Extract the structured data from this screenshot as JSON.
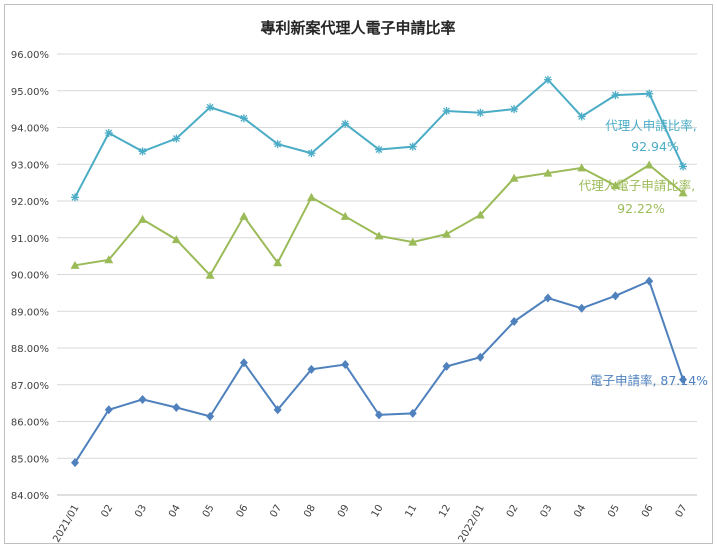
{
  "chart_data": {
    "type": "line",
    "title": "專利新案代理人電子申請比率",
    "xlabel": "",
    "ylabel": "",
    "ylim": [
      84,
      96
    ],
    "y_ticks": [
      "84.00%",
      "85.00%",
      "86.00%",
      "87.00%",
      "88.00%",
      "89.00%",
      "90.00%",
      "91.00%",
      "92.00%",
      "93.00%",
      "94.00%",
      "95.00%",
      "96.00%"
    ],
    "categories": [
      "2021/01",
      "02",
      "03",
      "04",
      "05",
      "06",
      "07",
      "08",
      "09",
      "10",
      "11",
      "12",
      "2022/01",
      "02",
      "03",
      "04",
      "05",
      "06",
      "07"
    ],
    "grid": "horizontal",
    "series": [
      {
        "name": "代理人申請比率",
        "color": "#4bacc6",
        "marker": "asterisk",
        "values": [
          92.1,
          93.85,
          93.35,
          93.7,
          94.55,
          94.25,
          93.55,
          93.3,
          94.1,
          93.4,
          93.48,
          94.45,
          94.4,
          94.5,
          95.3,
          94.3,
          94.88,
          94.92,
          92.94
        ]
      },
      {
        "name": "代理人電子申請比率",
        "color": "#9bbb59",
        "marker": "triangle",
        "values": [
          90.25,
          90.4,
          91.5,
          90.95,
          89.98,
          91.58,
          90.32,
          92.1,
          91.58,
          91.05,
          90.88,
          91.1,
          91.62,
          92.62,
          92.76,
          92.9,
          92.42,
          92.98,
          92.22
        ]
      },
      {
        "name": "電子申請率",
        "color": "#4f81bd",
        "marker": "diamond",
        "values": [
          84.88,
          86.32,
          86.6,
          86.38,
          86.14,
          87.6,
          86.32,
          87.42,
          87.55,
          86.18,
          86.22,
          87.5,
          87.75,
          88.72,
          89.36,
          89.08,
          89.42,
          89.82,
          87.14
        ]
      }
    ],
    "annotations": [
      {
        "series": "代理人申請比率",
        "line1": "代理人申請比率,",
        "line2": "92.94%",
        "color": "#4bacc6"
      },
      {
        "series": "代理人電子申請比率",
        "line1": "代理人電子申請比率,",
        "line2": "92.22%",
        "color": "#9bbb59"
      },
      {
        "series": "電子申請率",
        "line1": "電子申請率, 87.14%",
        "line2": "",
        "color": "#4f81bd"
      }
    ]
  }
}
